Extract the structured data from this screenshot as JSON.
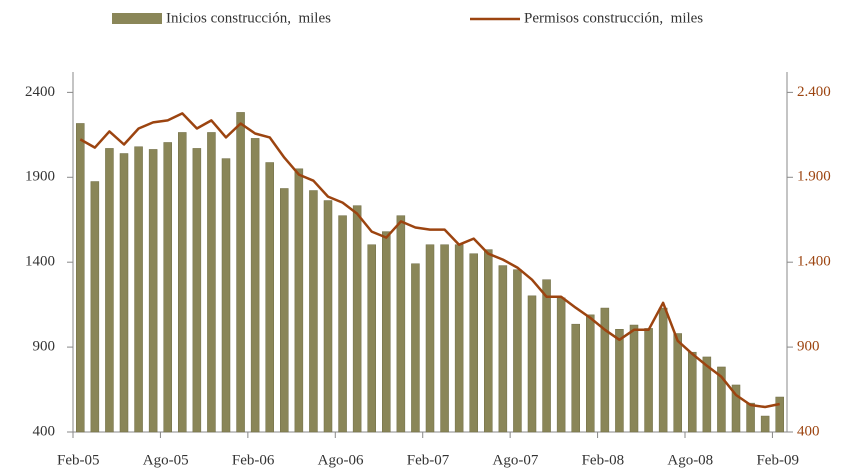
{
  "chart_data": {
    "type": "bar",
    "categories": [
      "Feb-05",
      null,
      null,
      null,
      null,
      null,
      "Ago-05",
      null,
      null,
      null,
      null,
      null,
      "Feb-06",
      null,
      null,
      null,
      null,
      null,
      "Ago-06",
      null,
      null,
      null,
      null,
      null,
      "Feb-07",
      null,
      null,
      null,
      null,
      null,
      "Ago-07",
      null,
      null,
      null,
      null,
      null,
      "Feb-08",
      null,
      null,
      null,
      null,
      null,
      "Ago-08",
      null,
      null,
      null,
      null,
      null,
      "Feb-09"
    ],
    "series": [
      {
        "name": "Inicios construcción,  miles",
        "type": "bar",
        "color": "#8a8658",
        "values": [
          2217,
          1875,
          2070,
          2040,
          2080,
          2064,
          2105,
          2164,
          2070,
          2164,
          2010,
          2282,
          2129,
          1987,
          1834,
          1950,
          1822,
          1763,
          1674,
          1733,
          1503,
          1580,
          1674,
          1391,
          1503,
          1503,
          1503,
          1450,
          1474,
          1380,
          1356,
          1202,
          1297,
          1190,
          1035,
          1090,
          1130,
          1005,
          1030,
          1010,
          1130,
          980,
          870,
          842,
          783,
          677,
          570,
          494,
          606
        ]
      },
      {
        "name": "Permisos construcción,  miles",
        "type": "line",
        "axis": "y2",
        "color": "#9c4410",
        "values": [
          2123,
          2075,
          2170,
          2093,
          2187,
          2223,
          2235,
          2276,
          2187,
          2235,
          2135,
          2217,
          2158,
          2135,
          2016,
          1916,
          1880,
          1786,
          1751,
          1686,
          1580,
          1545,
          1640,
          1604,
          1592,
          1592,
          1503,
          1539,
          1450,
          1415,
          1368,
          1297,
          1196,
          1196,
          1132,
          1072,
          1002,
          943,
          1002,
          1002,
          1161,
          937,
          860,
          790,
          725,
          618,
          559,
          547,
          565
        ]
      }
    ],
    "ylim": [
      400,
      2520
    ],
    "yticks": [
      400,
      900,
      1400,
      1900,
      2400
    ],
    "y2lim": [
      400,
      2520
    ],
    "y2ticks": [
      400,
      900,
      {
        "value": 1400,
        "label": "1.400"
      },
      {
        "value": 1900,
        "label": "1.900"
      },
      {
        "value": 2400,
        "label": "2.400"
      }
    ],
    "y2color": "#9c4410",
    "grid": false,
    "legend": "top"
  }
}
